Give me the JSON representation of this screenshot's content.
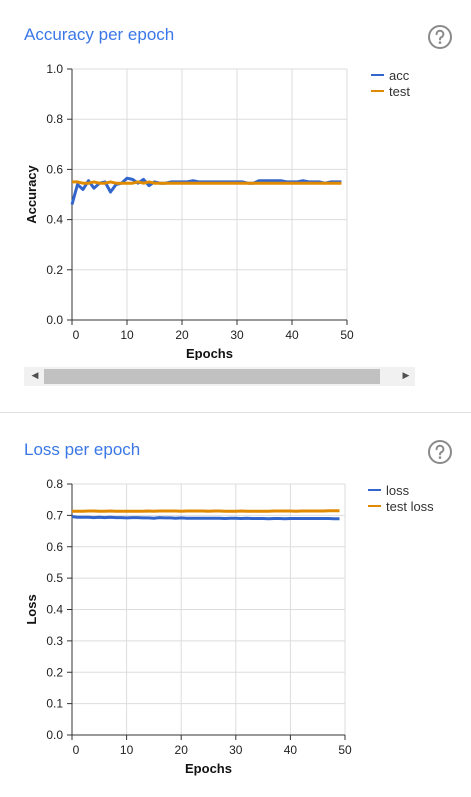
{
  "icons": {
    "help": "help-circle-icon",
    "scroll_left": "scroll-left-arrow-icon",
    "scroll_right": "scroll-right-arrow-icon"
  },
  "colors": {
    "title": "#3b78e7",
    "series1": "#3366cc",
    "series2": "#e08a00",
    "grid": "#dddddd"
  },
  "chart_data": [
    {
      "type": "line",
      "title": "Accuracy per epoch",
      "xlabel": "Epochs",
      "ylabel": "Accuracy",
      "xlim": [
        0,
        50
      ],
      "ylim": [
        0,
        1
      ],
      "xticks": [
        "0",
        "10",
        "20",
        "30",
        "40",
        "50"
      ],
      "yticks": [
        "0.0",
        "0.2",
        "0.4",
        "0.6",
        "0.8",
        "1.0"
      ],
      "grid": true,
      "legend": "right",
      "series": [
        {
          "name": "acc",
          "x": [
            0,
            1,
            2,
            3,
            4,
            5,
            6,
            7,
            8,
            9,
            10,
            11,
            12,
            13,
            14,
            15,
            16,
            17,
            18,
            19,
            20,
            21,
            22,
            23,
            24,
            25,
            26,
            27,
            28,
            29,
            30,
            31,
            32,
            33,
            34,
            35,
            36,
            37,
            38,
            39,
            40,
            41,
            42,
            43,
            44,
            45,
            46,
            47,
            48,
            49
          ],
          "values": [
            0.46,
            0.54,
            0.52,
            0.555,
            0.525,
            0.545,
            0.55,
            0.51,
            0.54,
            0.545,
            0.565,
            0.56,
            0.545,
            0.56,
            0.535,
            0.55,
            0.545,
            0.545,
            0.55,
            0.55,
            0.55,
            0.55,
            0.555,
            0.55,
            0.55,
            0.55,
            0.55,
            0.55,
            0.55,
            0.55,
            0.55,
            0.55,
            0.545,
            0.545,
            0.555,
            0.555,
            0.555,
            0.555,
            0.555,
            0.55,
            0.55,
            0.55,
            0.555,
            0.55,
            0.55,
            0.55,
            0.545,
            0.55,
            0.55,
            0.55
          ]
        },
        {
          "name": "test",
          "x": [
            0,
            1,
            2,
            3,
            4,
            5,
            6,
            7,
            8,
            9,
            10,
            11,
            12,
            13,
            14,
            15,
            16,
            17,
            18,
            19,
            20,
            21,
            22,
            23,
            24,
            25,
            26,
            27,
            28,
            29,
            30,
            31,
            32,
            33,
            34,
            35,
            36,
            37,
            38,
            39,
            40,
            41,
            42,
            43,
            44,
            45,
            46,
            47,
            48,
            49
          ],
          "values": [
            0.55,
            0.55,
            0.545,
            0.545,
            0.55,
            0.545,
            0.545,
            0.55,
            0.545,
            0.545,
            0.545,
            0.545,
            0.55,
            0.545,
            0.55,
            0.545,
            0.545,
            0.545,
            0.545,
            0.545,
            0.545,
            0.545,
            0.545,
            0.545,
            0.545,
            0.545,
            0.545,
            0.545,
            0.545,
            0.545,
            0.545,
            0.545,
            0.545,
            0.545,
            0.545,
            0.545,
            0.545,
            0.545,
            0.545,
            0.545,
            0.545,
            0.545,
            0.545,
            0.545,
            0.545,
            0.545,
            0.545,
            0.545,
            0.545,
            0.545
          ]
        }
      ]
    },
    {
      "type": "line",
      "title": "Loss per epoch",
      "xlabel": "Epochs",
      "ylabel": "Loss",
      "xlim": [
        0,
        50
      ],
      "ylim": [
        0,
        0.8
      ],
      "xticks": [
        "0",
        "10",
        "20",
        "30",
        "40",
        "50"
      ],
      "yticks": [
        "0.0",
        "0.1",
        "0.2",
        "0.3",
        "0.4",
        "0.5",
        "0.6",
        "0.7",
        "0.8"
      ],
      "grid": true,
      "legend": "right",
      "series": [
        {
          "name": "loss",
          "x": [
            0,
            1,
            2,
            3,
            4,
            5,
            6,
            7,
            8,
            9,
            10,
            11,
            12,
            13,
            14,
            15,
            16,
            17,
            18,
            19,
            20,
            21,
            22,
            23,
            24,
            25,
            26,
            27,
            28,
            29,
            30,
            31,
            32,
            33,
            34,
            35,
            36,
            37,
            38,
            39,
            40,
            41,
            42,
            43,
            44,
            45,
            46,
            47,
            48,
            49
          ],
          "values": [
            0.696,
            0.694,
            0.694,
            0.694,
            0.693,
            0.694,
            0.693,
            0.694,
            0.693,
            0.693,
            0.692,
            0.693,
            0.693,
            0.692,
            0.692,
            0.691,
            0.693,
            0.692,
            0.692,
            0.691,
            0.692,
            0.691,
            0.691,
            0.691,
            0.691,
            0.691,
            0.691,
            0.691,
            0.69,
            0.691,
            0.691,
            0.69,
            0.691,
            0.69,
            0.69,
            0.69,
            0.689,
            0.69,
            0.69,
            0.689,
            0.69,
            0.69,
            0.69,
            0.69,
            0.69,
            0.69,
            0.69,
            0.69,
            0.689,
            0.689
          ]
        },
        {
          "name": "test loss",
          "x": [
            0,
            1,
            2,
            3,
            4,
            5,
            6,
            7,
            8,
            9,
            10,
            11,
            12,
            13,
            14,
            15,
            16,
            17,
            18,
            19,
            20,
            21,
            22,
            23,
            24,
            25,
            26,
            27,
            28,
            29,
            30,
            31,
            32,
            33,
            34,
            35,
            36,
            37,
            38,
            39,
            40,
            41,
            42,
            43,
            44,
            45,
            46,
            47,
            48,
            49
          ],
          "values": [
            0.713,
            0.713,
            0.713,
            0.714,
            0.714,
            0.713,
            0.713,
            0.714,
            0.713,
            0.713,
            0.713,
            0.713,
            0.713,
            0.713,
            0.714,
            0.713,
            0.714,
            0.714,
            0.714,
            0.714,
            0.713,
            0.714,
            0.714,
            0.714,
            0.714,
            0.713,
            0.714,
            0.714,
            0.713,
            0.713,
            0.713,
            0.714,
            0.713,
            0.713,
            0.713,
            0.713,
            0.713,
            0.714,
            0.714,
            0.714,
            0.714,
            0.713,
            0.714,
            0.714,
            0.714,
            0.714,
            0.714,
            0.715,
            0.715,
            0.715
          ]
        }
      ]
    }
  ]
}
